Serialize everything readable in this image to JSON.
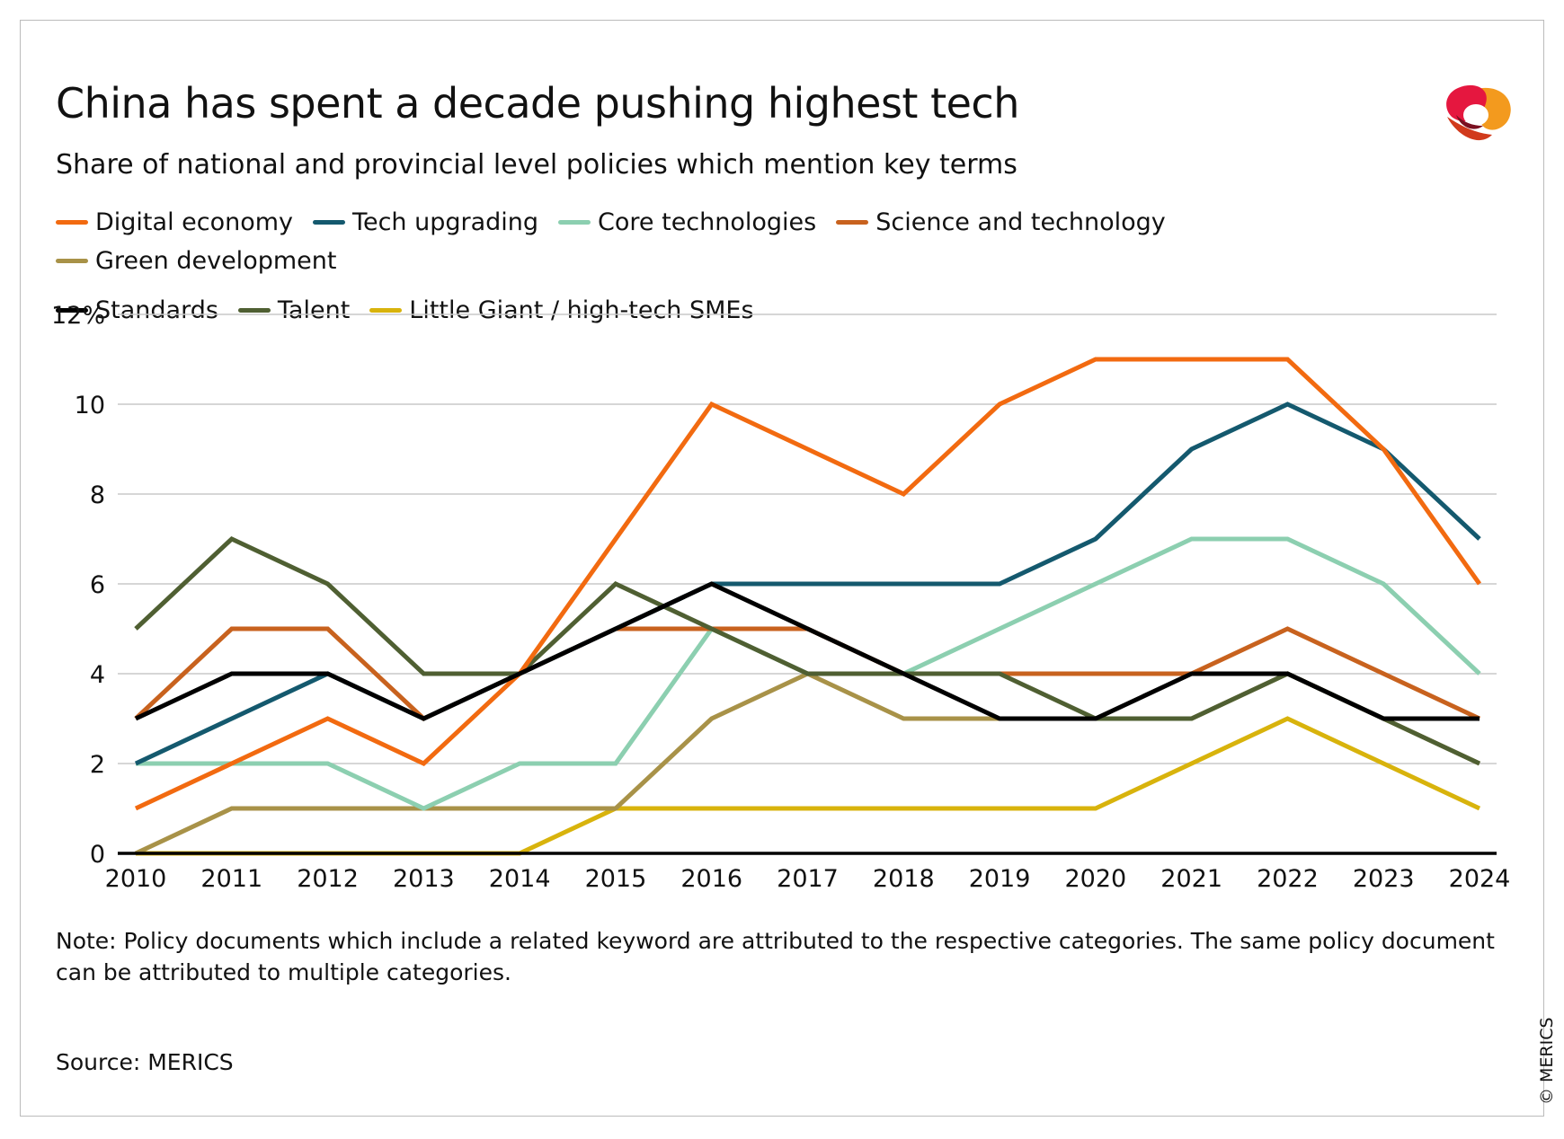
{
  "chart_data": {
    "type": "line",
    "title": "China has spent a decade pushing highest tech",
    "subtitle": "Share of national and provincial level policies which mention key terms",
    "x": [
      2010,
      2011,
      2012,
      2013,
      2014,
      2015,
      2016,
      2017,
      2018,
      2019,
      2020,
      2021,
      2022,
      2023,
      2024
    ],
    "xlim": [
      2010,
      2024
    ],
    "xticks": [
      2010,
      2011,
      2012,
      2013,
      2014,
      2015,
      2016,
      2017,
      2018,
      2019,
      2020,
      2021,
      2022,
      2023,
      2024
    ],
    "ylim": [
      0,
      12
    ],
    "yticks": [
      0,
      2,
      4,
      6,
      8,
      10,
      {
        "value": 12,
        "label": "12%"
      }
    ],
    "grid": true,
    "series": [
      {
        "name": "Digital economy",
        "color": "#f26a10",
        "values": [
          1,
          2,
          3,
          2,
          4,
          7,
          10,
          9,
          8,
          10,
          11,
          11,
          11,
          9,
          6
        ]
      },
      {
        "name": "Tech upgrading",
        "color": "#14596e",
        "values": [
          2,
          3,
          4,
          3,
          4,
          5,
          6,
          6,
          6,
          6,
          7,
          9,
          10,
          9,
          7
        ]
      },
      {
        "name": "Core technologies",
        "color": "#8ccfb0",
        "values": [
          2,
          2,
          2,
          1,
          2,
          2,
          5,
          4,
          4,
          5,
          6,
          7,
          7,
          6,
          4
        ]
      },
      {
        "name": "Science and technology",
        "color": "#c8621e",
        "values": [
          3,
          5,
          5,
          3,
          4,
          5,
          5,
          5,
          4,
          4,
          4,
          4,
          5,
          4,
          3
        ]
      },
      {
        "name": "Green development",
        "color": "#a89248",
        "values": [
          0,
          1,
          1,
          1,
          1,
          1,
          3,
          4,
          3,
          3,
          3,
          3,
          4,
          3,
          2
        ]
      },
      {
        "name": "Standards",
        "color": "#000000",
        "values": [
          3,
          4,
          4,
          3,
          4,
          5,
          6,
          5,
          4,
          3,
          3,
          4,
          4,
          3,
          3
        ]
      },
      {
        "name": "Talent",
        "color": "#4f5f32",
        "values": [
          5,
          7,
          6,
          4,
          4,
          6,
          5,
          4,
          4,
          4,
          3,
          3,
          4,
          3,
          2
        ]
      },
      {
        "name": "Little Giant / high-tech SMEs",
        "color": "#d8b30c",
        "values": [
          0,
          0,
          0,
          0,
          0,
          1,
          1,
          1,
          1,
          1,
          1,
          2,
          3,
          2,
          1
        ]
      }
    ],
    "note": "Note: Policy documents which include a related keyword are attributed to the respective categories. The same policy document can be attributed to multiple categories.",
    "source": "Source: MERICS",
    "copyright": "© MERICS"
  }
}
